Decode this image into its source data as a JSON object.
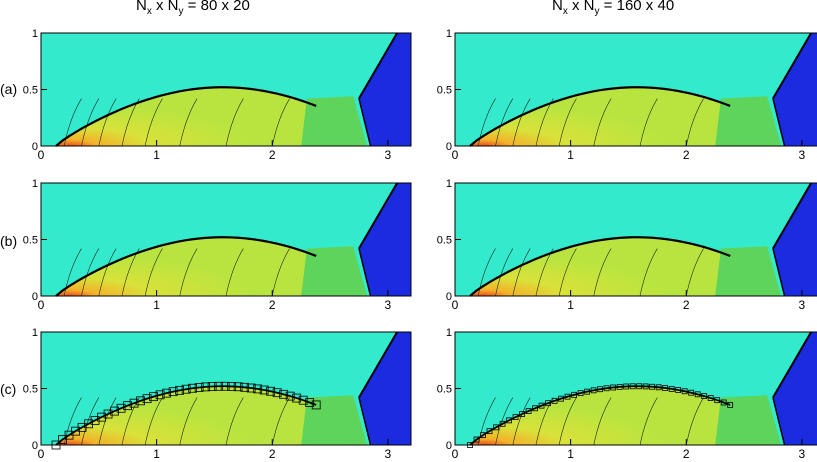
{
  "columns": [
    {
      "pre": "N",
      "s1": "x",
      "mid": " x N",
      "s2": "y",
      "post": " = 80 x 20"
    },
    {
      "pre": "N",
      "s1": "x",
      "mid": " x N",
      "s2": "y",
      "post": " = 160 x 40"
    }
  ],
  "rows": [
    "(a)",
    "(b)",
    "(c)"
  ],
  "x_ticks": [
    "0",
    "1",
    "2",
    "3"
  ],
  "y_ticks": [
    "0",
    "0.5",
    "1"
  ],
  "colors": {
    "freestream": "#33eacc",
    "downstream": "#1a2be0",
    "shock_layer": "#b9e43f",
    "wake": "#5ed45a",
    "stagnation_hot": "#e84a1a",
    "stagnation_warm": "#f3b22a",
    "contour_line": "#1d2a1d"
  }
}
